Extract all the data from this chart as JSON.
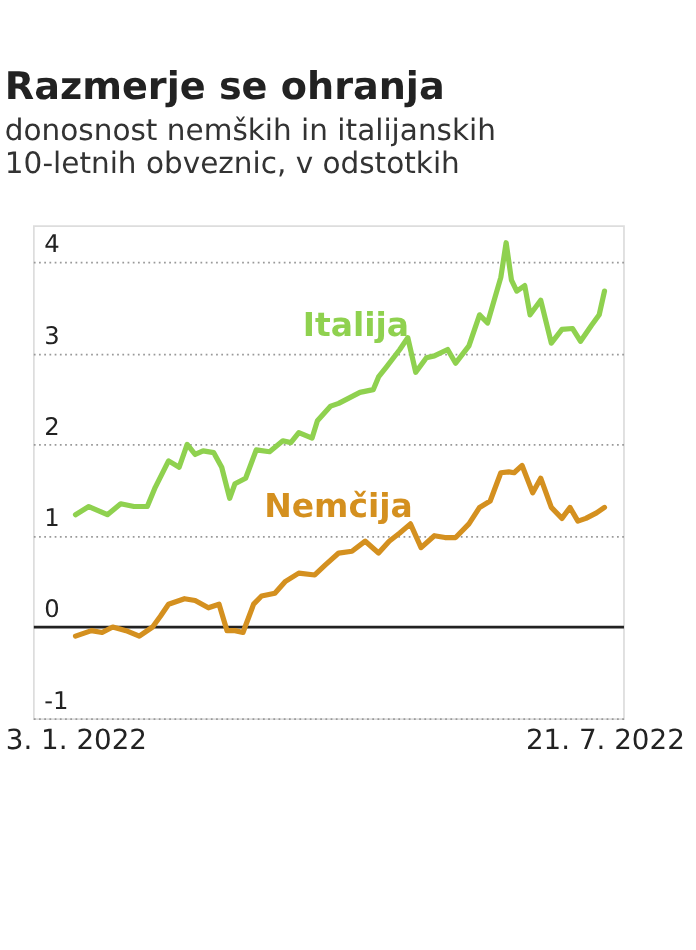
{
  "chart_data": {
    "type": "line",
    "title": "Razmerje se ohranja",
    "subtitle": "donosnost nemških in italijanskih 10-letnih obveznic, v odstotkih",
    "xlim": [
      "2021-12-18",
      "2022-07-28"
    ],
    "xticks": [
      {
        "value": "2022-01-03",
        "label": "3. 1. 2022"
      },
      {
        "value": "2022-07-21",
        "label": "21. 7. 2022"
      }
    ],
    "ylim": [
      -1,
      4.4
    ],
    "yticks": [
      -1,
      0,
      1,
      2,
      3,
      4
    ],
    "grid": "y",
    "legend": false,
    "series": [
      {
        "name": "Italija",
        "color": "#8fd14f",
        "x": [
          "2022-01-03",
          "2022-01-08",
          "2022-01-15",
          "2022-01-20",
          "2022-01-25",
          "2022-01-30",
          "2022-02-02",
          "2022-02-07",
          "2022-02-11",
          "2022-02-14",
          "2022-02-17",
          "2022-02-20",
          "2022-02-24",
          "2022-02-27",
          "2022-03-02",
          "2022-03-04",
          "2022-03-08",
          "2022-03-12",
          "2022-03-17",
          "2022-03-22",
          "2022-03-25",
          "2022-03-28",
          "2022-04-02",
          "2022-04-04",
          "2022-04-09",
          "2022-04-12",
          "2022-04-16",
          "2022-04-20",
          "2022-04-25",
          "2022-04-27",
          "2022-04-30",
          "2022-05-05",
          "2022-05-08",
          "2022-05-11",
          "2022-05-15",
          "2022-05-18",
          "2022-05-23",
          "2022-05-26",
          "2022-05-31",
          "2022-06-04",
          "2022-06-07",
          "2022-06-12",
          "2022-06-14",
          "2022-06-16",
          "2022-06-18",
          "2022-06-21",
          "2022-06-23",
          "2022-06-27",
          "2022-07-01",
          "2022-07-05",
          "2022-07-09",
          "2022-07-12",
          "2022-07-16",
          "2022-07-19",
          "2022-07-21"
        ],
        "values": [
          1.23,
          1.32,
          1.23,
          1.35,
          1.32,
          1.32,
          1.53,
          1.82,
          1.75,
          2.0,
          1.89,
          1.93,
          1.91,
          1.75,
          1.41,
          1.57,
          1.63,
          1.94,
          1.92,
          2.04,
          2.02,
          2.13,
          2.07,
          2.26,
          2.42,
          2.45,
          2.51,
          2.57,
          2.6,
          2.74,
          2.85,
          3.04,
          3.17,
          2.79,
          2.95,
          2.97,
          3.04,
          2.89,
          3.08,
          3.42,
          3.33,
          3.83,
          4.21,
          3.8,
          3.68,
          3.74,
          3.42,
          3.58,
          3.11,
          3.26,
          3.27,
          3.13,
          3.3,
          3.42,
          3.68
        ]
      },
      {
        "name": "Nemčija",
        "color": "#d4901f",
        "x": [
          "2022-01-03",
          "2022-01-09",
          "2022-01-13",
          "2022-01-17",
          "2022-01-22",
          "2022-01-27",
          "2022-02-01",
          "2022-02-04",
          "2022-02-07",
          "2022-02-13",
          "2022-02-17",
          "2022-02-22",
          "2022-02-26",
          "2022-03-01",
          "2022-03-04",
          "2022-03-07",
          "2022-03-11",
          "2022-03-14",
          "2022-03-19",
          "2022-03-23",
          "2022-03-28",
          "2022-04-03",
          "2022-04-07",
          "2022-04-12",
          "2022-04-17",
          "2022-04-22",
          "2022-04-27",
          "2022-05-01",
          "2022-05-05",
          "2022-05-09",
          "2022-05-13",
          "2022-05-18",
          "2022-05-22",
          "2022-05-26",
          "2022-05-31",
          "2022-06-04",
          "2022-06-08",
          "2022-06-12",
          "2022-06-15",
          "2022-06-17",
          "2022-06-20",
          "2022-06-24",
          "2022-06-27",
          "2022-07-01",
          "2022-07-05",
          "2022-07-08",
          "2022-07-11",
          "2022-07-14",
          "2022-07-18",
          "2022-07-21"
        ],
        "values": [
          -0.1,
          -0.04,
          -0.06,
          0,
          -0.04,
          -0.1,
          0,
          0.12,
          0.25,
          0.31,
          0.29,
          0.21,
          0.25,
          -0.04,
          -0.04,
          -0.06,
          0.25,
          0.34,
          0.37,
          0.5,
          0.59,
          0.57,
          0.68,
          0.81,
          0.83,
          0.94,
          0.81,
          0.94,
          1.03,
          1.13,
          0.87,
          1.0,
          0.98,
          0.98,
          1.13,
          1.31,
          1.38,
          1.69,
          1.7,
          1.69,
          1.77,
          1.47,
          1.63,
          1.31,
          1.19,
          1.31,
          1.16,
          1.19,
          1.25,
          1.31
        ]
      }
    ]
  }
}
